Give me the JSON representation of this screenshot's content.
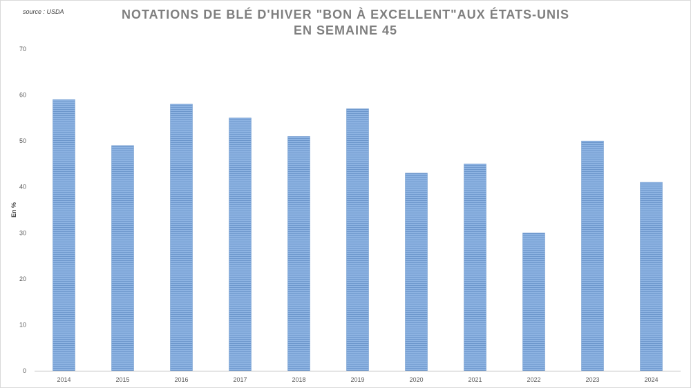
{
  "source_note": "source : USDA",
  "title_lines": [
    "NOTATIONS DE BLÉ D'HIVER \"BON À EXCELLENT\"AUX ÉTATS-UNIS",
    "EN SEMAINE 45"
  ],
  "colors": {
    "bar": "#8db3e2",
    "bar_line": "#6d97cc",
    "axis": "#bfbfbf"
  },
  "chart_data": {
    "type": "bar",
    "title": "NOTATIONS DE BLÉ D'HIVER \"BON À EXCELLENT\"AUX ÉTATS-UNIS EN SEMAINE 45",
    "categories": [
      "2014",
      "2015",
      "2016",
      "2017",
      "2018",
      "2019",
      "2020",
      "2021",
      "2022",
      "2023",
      "2024"
    ],
    "values": [
      59,
      49,
      58,
      55,
      51,
      57,
      43,
      45,
      30,
      50,
      41
    ],
    "xlabel": "",
    "ylabel": "En %",
    "ylim": [
      0,
      70
    ],
    "yticks": [
      "0",
      "10",
      "20",
      "30",
      "40",
      "50",
      "60",
      "70"
    ],
    "grid": false,
    "legend": "none"
  }
}
